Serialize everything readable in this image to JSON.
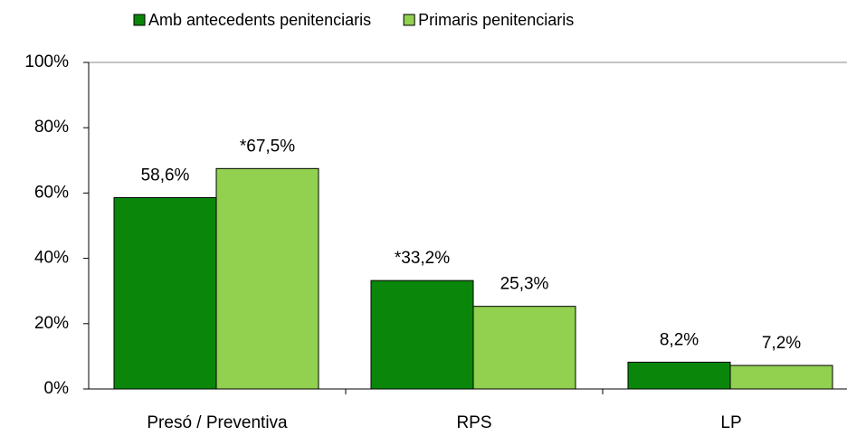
{
  "chart_data": {
    "type": "bar",
    "categories": [
      "Presó / Preventiva",
      "RPS",
      "LP"
    ],
    "series": [
      {
        "name": "Amb antecedents penitenciaris",
        "color": "#0a870a",
        "values": [
          58.6,
          33.2,
          8.2
        ],
        "value_labels": [
          "58,6%",
          "*33,2%",
          "8,2%"
        ]
      },
      {
        "name": "Primaris penitenciaris",
        "color": "#92d050",
        "values": [
          67.5,
          25.3,
          7.2
        ],
        "value_labels": [
          "*67,5%",
          "25,3%",
          "7,2%"
        ]
      }
    ],
    "ylim": [
      0,
      100
    ],
    "yticks": [
      {
        "value": 0,
        "label": "0%"
      },
      {
        "value": 20,
        "label": "20%"
      },
      {
        "value": 40,
        "label": "40%"
      },
      {
        "value": 60,
        "label": "60%"
      },
      {
        "value": 80,
        "label": "80%"
      },
      {
        "value": 100,
        "label": "100%"
      }
    ],
    "grid": false,
    "legend": "top"
  }
}
